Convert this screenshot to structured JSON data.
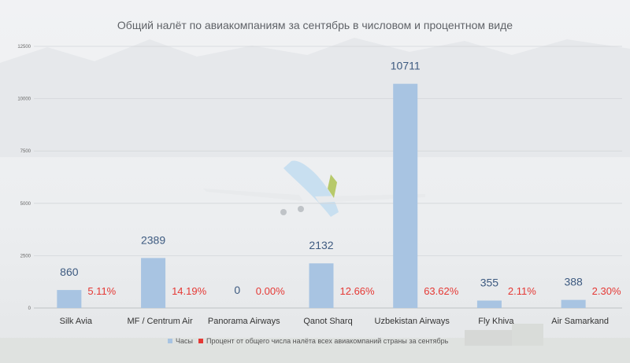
{
  "chart_data": {
    "type": "bar",
    "title": "Общий налёт по авиакомпаниям за сентябрь в числовом и процентном виде",
    "xlabel": "",
    "ylabel": "",
    "categories": [
      "Silk Avia",
      "MF / Centrum Air",
      "Panorama Airways",
      "Qanot Sharq",
      "Uzbekistan Airways",
      "Fly Khiva",
      "Air Samarkand"
    ],
    "series": [
      {
        "name": "Часы",
        "values": [
          860,
          2389,
          0,
          2132,
          10711,
          355,
          388
        ],
        "color": "#a8c4e2"
      },
      {
        "name": "Процент от общего числа налёта всех авиакомпаний страны за сентябрь",
        "values": [
          5.11,
          14.19,
          0.0,
          12.66,
          63.62,
          2.11,
          2.3
        ],
        "color": "#e53935"
      }
    ],
    "percent_labels": [
      "5.11%",
      "14.19%",
      "0.00%",
      "12.66%",
      "63.62%",
      "2.11%",
      "2.30%"
    ],
    "yticks": [
      0,
      2500,
      5000,
      7500,
      10000,
      12500
    ],
    "ylim": [
      0,
      12500
    ],
    "grid": true,
    "legend": "bottom"
  }
}
